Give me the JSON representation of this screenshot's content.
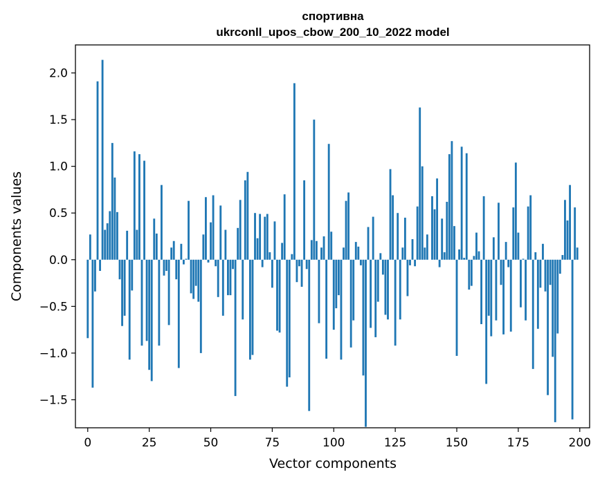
{
  "chart_data": {
    "type": "bar",
    "title_line1": "спортивна",
    "title_line2": "ukrconll_upos_cbow_200_10_2022 model",
    "xlabel": "Vector components",
    "ylabel": "Components values",
    "xlim": [
      -5,
      204
    ],
    "ylim": [
      -1.8,
      2.3
    ],
    "xticks": [
      0,
      25,
      50,
      75,
      100,
      125,
      150,
      175,
      200
    ],
    "xtick_labels": [
      "0",
      "25",
      "50",
      "75",
      "100",
      "125",
      "150",
      "175",
      "200"
    ],
    "yticks": [
      -1.5,
      -1.0,
      -0.5,
      0.0,
      0.5,
      1.0,
      1.5,
      2.0
    ],
    "ytick_labels": [
      "−1.5",
      "−1.0",
      "−0.5",
      "0.0",
      "0.5",
      "1.0",
      "1.5",
      "2.0"
    ],
    "bar_color": "#1f77b4",
    "values": [
      -0.84,
      0.27,
      -1.37,
      -0.34,
      1.91,
      -0.12,
      2.14,
      0.32,
      0.39,
      0.52,
      1.25,
      0.88,
      0.51,
      -0.21,
      -0.71,
      -0.6,
      0.31,
      -1.07,
      -0.33,
      1.16,
      0.32,
      1.13,
      -0.92,
      1.06,
      -0.87,
      -1.18,
      -1.3,
      0.44,
      0.28,
      -0.92,
      0.8,
      -0.17,
      -0.12,
      -0.7,
      0.13,
      0.2,
      -0.21,
      -1.16,
      0.17,
      -0.05,
      0.01,
      0.63,
      -0.36,
      -0.42,
      -0.28,
      -0.45,
      -1.0,
      0.27,
      0.67,
      -0.03,
      0.4,
      0.69,
      -0.07,
      -0.4,
      0.58,
      -0.6,
      0.32,
      -0.38,
      -0.38,
      -0.1,
      -1.46,
      0.34,
      0.64,
      -0.64,
      0.85,
      0.94,
      -1.07,
      -1.02,
      0.5,
      0.23,
      0.49,
      -0.08,
      0.46,
      0.49,
      0.08,
      -0.3,
      0.41,
      -0.76,
      -0.78,
      0.18,
      0.7,
      -1.36,
      -1.26,
      0.06,
      1.89,
      -0.24,
      -0.07,
      -0.29,
      0.85,
      -0.1,
      -1.62,
      0.21,
      1.5,
      0.2,
      -0.68,
      0.13,
      0.25,
      -1.06,
      1.24,
      0.3,
      -0.75,
      -0.52,
      -0.38,
      -1.07,
      0.13,
      0.63,
      0.72,
      -0.94,
      -0.65,
      0.19,
      0.14,
      -0.06,
      -1.24,
      -1.79,
      0.35,
      -0.73,
      0.46,
      -0.83,
      -0.45,
      0.07,
      -0.16,
      -0.59,
      -0.64,
      0.97,
      0.69,
      -0.92,
      0.5,
      -0.64,
      0.13,
      0.45,
      -0.39,
      -0.06,
      0.22,
      -0.07,
      0.57,
      1.63,
      1.0,
      0.13,
      0.27,
      0.0,
      0.68,
      0.54,
      0.87,
      -0.08,
      0.44,
      0.08,
      0.62,
      1.13,
      1.27,
      0.36,
      -1.03,
      0.11,
      1.21,
      0.02,
      1.14,
      -0.32,
      -0.28,
      0.04,
      0.29,
      0.09,
      -0.69,
      0.68,
      -1.33,
      -0.6,
      -0.82,
      0.24,
      -0.65,
      0.61,
      -0.27,
      -0.8,
      0.19,
      -0.08,
      -0.77,
      0.56,
      1.04,
      0.29,
      -0.51,
      0.01,
      -0.65,
      0.57,
      0.69,
      -1.17,
      0.08,
      -0.74,
      -0.3,
      0.17,
      -0.34,
      -1.45,
      -0.27,
      -1.04,
      -1.74,
      -0.79,
      -0.15,
      0.05,
      0.64,
      0.42,
      0.8,
      -1.71,
      0.56,
      0.13
    ]
  }
}
